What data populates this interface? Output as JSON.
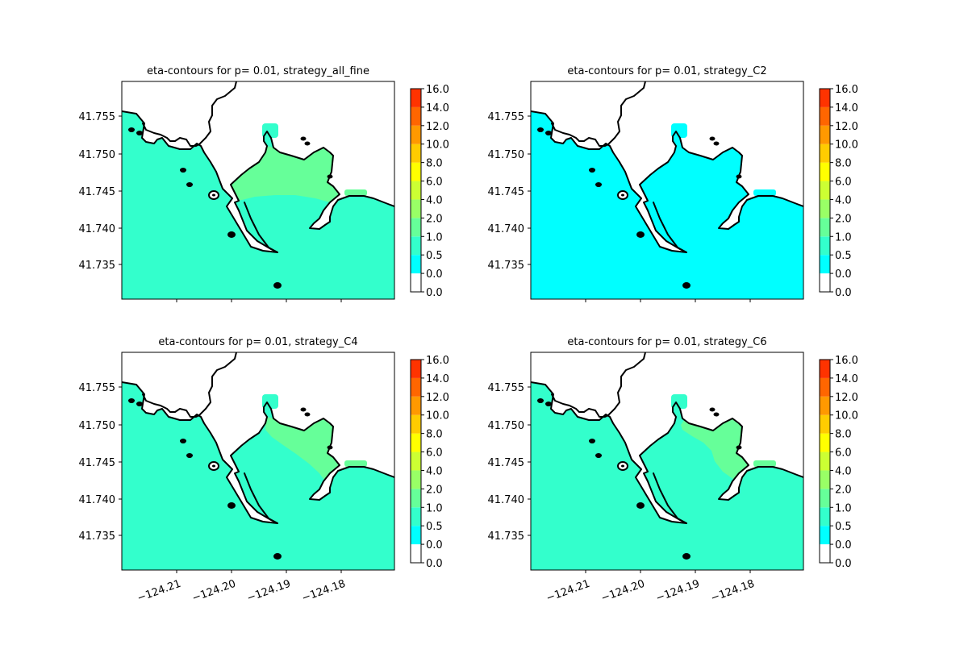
{
  "chart_data": [
    {
      "type": "contour-map",
      "title": "eta-contours for p= 0.01, strategy_all_fine",
      "fill": {
        "ocean_level_range": [
          0.5,
          1.0
        ],
        "bay_level_range": [
          1.0,
          2.0
        ],
        "levee_patch_level_range": [
          0.5,
          1.0
        ]
      },
      "bay_extent": "full",
      "x_ticks": [
        "−124.21",
        "−124.20",
        "−124.19",
        "−124.18"
      ],
      "y_ticks": [
        "41.755",
        "41.750",
        "41.745",
        "41.740",
        "41.735"
      ],
      "x_ticks_shown": false
    },
    {
      "type": "contour-map",
      "title": "eta-contours for p= 0.01, strategy_C2",
      "fill": {
        "ocean_level_range": [
          0.0,
          0.5
        ],
        "bay_level_range": [
          0.0,
          0.5
        ],
        "levee_patch_level_range": [
          0.0,
          0.5
        ]
      },
      "bay_extent": "none",
      "x_ticks": [
        "−124.21",
        "−124.20",
        "−124.19",
        "−124.18"
      ],
      "y_ticks": [
        "41.755",
        "41.750",
        "41.745",
        "41.740",
        "41.735"
      ],
      "x_ticks_shown": false
    },
    {
      "type": "contour-map",
      "title": "eta-contours for p= 0.01, strategy_C4",
      "fill": {
        "ocean_level_range": [
          0.5,
          1.0
        ],
        "bay_level_range": [
          1.0,
          2.0
        ],
        "levee_patch_level_range": [
          0.5,
          1.0
        ]
      },
      "bay_extent": "east",
      "x_ticks": [
        "−124.21",
        "−124.20",
        "−124.19",
        "−124.18"
      ],
      "y_ticks": [
        "41.755",
        "41.750",
        "41.745",
        "41.740",
        "41.735"
      ],
      "x_ticks_shown": true
    },
    {
      "type": "contour-map",
      "title": "eta-contours for p= 0.01, strategy_C6",
      "fill": {
        "ocean_level_range": [
          0.5,
          1.0
        ],
        "bay_level_range": [
          1.0,
          2.0
        ],
        "levee_patch_level_range": [
          0.5,
          1.0
        ]
      },
      "bay_extent": "east-narrow",
      "x_ticks": [
        "−124.21",
        "−124.20",
        "−124.19",
        "−124.18"
      ],
      "y_ticks": [
        "41.755",
        "41.750",
        "41.745",
        "41.740",
        "41.735"
      ],
      "x_ticks_shown": true
    }
  ],
  "colorbar": {
    "tick_labels": [
      "0.0",
      "0.0",
      "0.5",
      "1.0",
      "2.0",
      "4.0",
      "6.0",
      "8.0",
      "10.0",
      "12.0",
      "14.0",
      "16.0"
    ],
    "colors": [
      "#ffffff",
      "#00ffff",
      "#33ffcc",
      "#66ff99",
      "#99ff66",
      "#ccff33",
      "#ffff00",
      "#ffcc00",
      "#ff9900",
      "#ff6600",
      "#ff3300",
      "#ff0000"
    ]
  },
  "colors": {
    "land": "#ffffff",
    "coastline": "#000000"
  }
}
